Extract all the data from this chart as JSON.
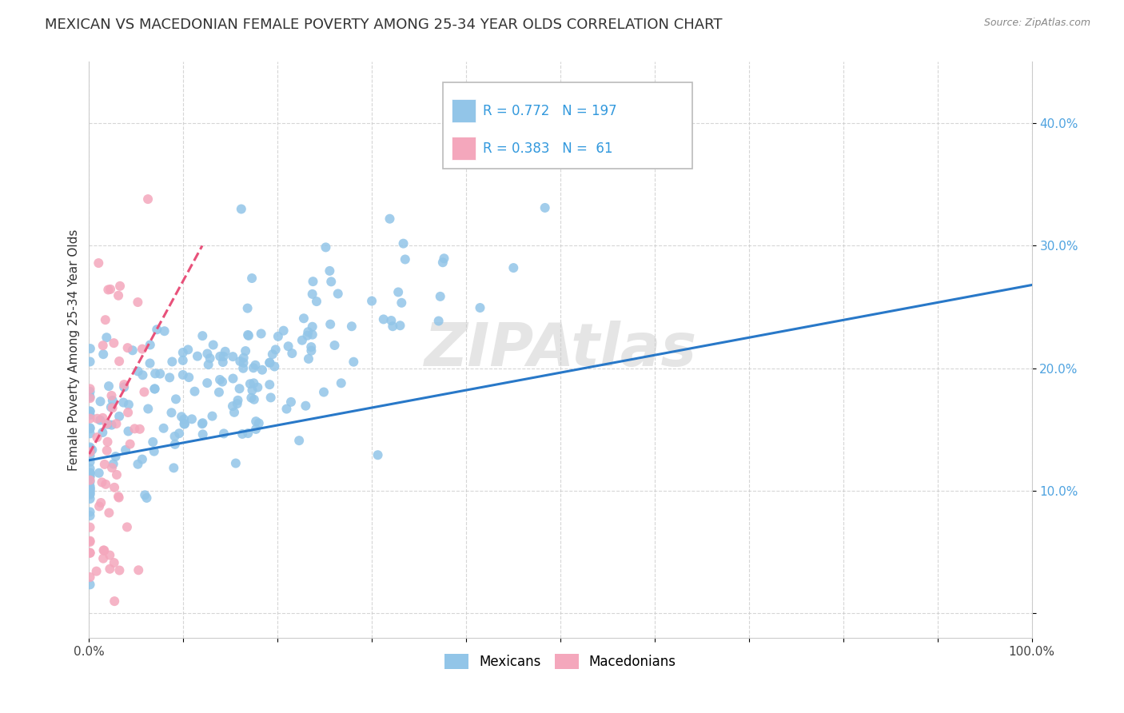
{
  "title": "MEXICAN VS MACEDONIAN FEMALE POVERTY AMONG 25-34 YEAR OLDS CORRELATION CHART",
  "source": "Source: ZipAtlas.com",
  "ylabel": "Female Poverty Among 25-34 Year Olds",
  "xlim": [
    0.0,
    1.0
  ],
  "ylim": [
    -0.02,
    0.45
  ],
  "x_ticks": [
    0.0,
    0.1,
    0.2,
    0.3,
    0.4,
    0.5,
    0.6,
    0.7,
    0.8,
    0.9,
    1.0
  ],
  "x_tick_labels": [
    "0.0%",
    "",
    "",
    "",
    "",
    "",
    "",
    "",
    "",
    "",
    "100.0%"
  ],
  "y_ticks": [
    0.0,
    0.1,
    0.2,
    0.3,
    0.4
  ],
  "y_tick_labels": [
    "",
    "10.0%",
    "20.0%",
    "30.0%",
    "40.0%"
  ],
  "mexican_color": "#92C5E8",
  "macedonian_color": "#F4A7BC",
  "mexican_line_color": "#2878C8",
  "macedonian_line_color": "#E8517A",
  "legend_R_mexican": "0.772",
  "legend_N_mexican": "197",
  "legend_R_macedonian": "0.383",
  "legend_N_macedonian": "61",
  "watermark": "ZIPAtlas",
  "background_color": "#ffffff",
  "grid_color": "#cccccc",
  "title_fontsize": 13,
  "axis_label_fontsize": 11,
  "tick_fontsize": 11,
  "tick_color": "#4fa3e0",
  "mexican_N": 197,
  "macedonian_N": 61,
  "mexican_R": 0.772,
  "macedonian_R": 0.383,
  "mex_line_x0": 0.0,
  "mex_line_y0": 0.125,
  "mex_line_x1": 1.0,
  "mex_line_y1": 0.268,
  "mac_line_x0": 0.0,
  "mac_line_y0": 0.13,
  "mac_line_x1": 0.12,
  "mac_line_y1": 0.3
}
